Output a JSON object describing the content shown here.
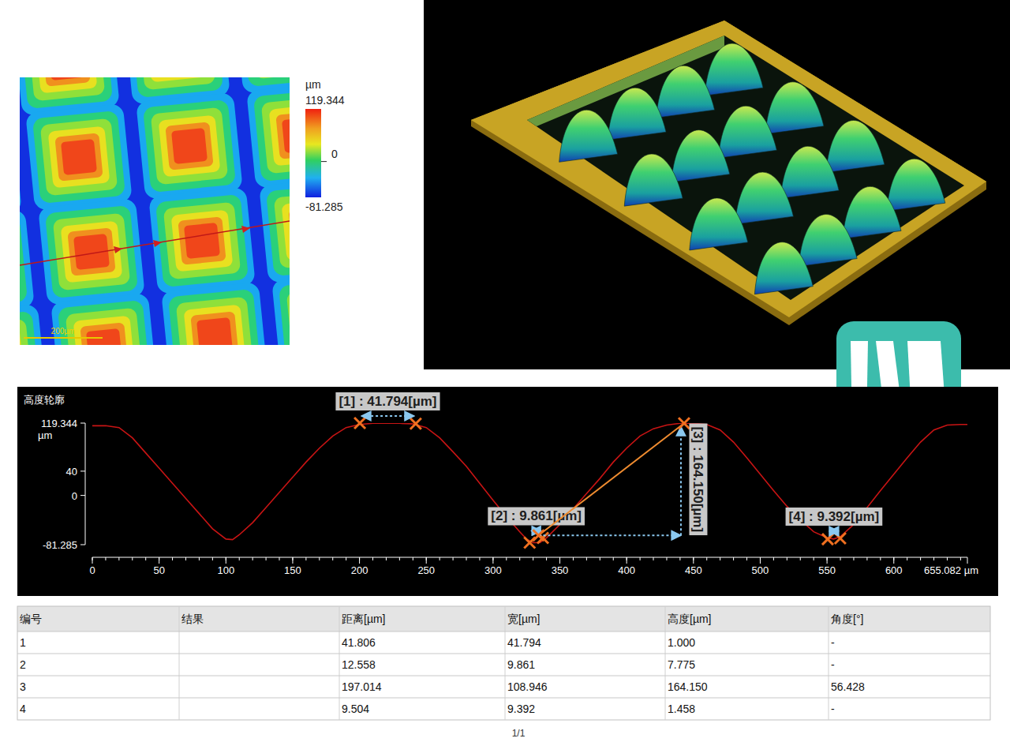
{
  "heatmap": {
    "unit": "µm",
    "colorbar_max": 119.344,
    "colorbar_min": -81.285,
    "colorbar_ticks": [
      0
    ],
    "scale_bar": "200µm"
  },
  "chart_data": {
    "type": "line",
    "title": "高度轮廓",
    "ylabel": "µm",
    "color": "#c81414",
    "grid": false,
    "x": [
      0,
      10,
      20,
      30,
      40,
      50,
      60,
      70,
      80,
      90,
      100,
      105,
      110,
      120,
      130,
      140,
      150,
      160,
      170,
      180,
      190,
      200,
      210,
      220,
      230,
      240,
      250,
      260,
      270,
      280,
      290,
      300,
      310,
      320,
      325,
      330,
      335,
      340,
      350,
      360,
      370,
      380,
      390,
      400,
      410,
      420,
      430,
      440,
      450,
      460,
      470,
      480,
      490,
      500,
      510,
      520,
      530,
      540,
      550,
      555,
      560,
      570,
      580,
      590,
      600,
      610,
      620,
      630,
      640,
      650,
      655.082
    ],
    "values": [
      115,
      115,
      112,
      95,
      70,
      45,
      20,
      -5,
      -30,
      -55,
      -72,
      -73,
      -65,
      -45,
      -20,
      5,
      30,
      55,
      78,
      98,
      112,
      117,
      119,
      119,
      119,
      118,
      112,
      95,
      72,
      48,
      20,
      -8,
      -35,
      -60,
      -72,
      -78,
      -78,
      -70,
      -48,
      -22,
      3,
      28,
      55,
      78,
      98,
      110,
      116,
      119,
      119,
      117,
      108,
      88,
      62,
      35,
      8,
      -18,
      -40,
      -60,
      -70,
      -72,
      -68,
      -48,
      -20,
      8,
      35,
      62,
      88,
      108,
      116,
      117,
      117
    ],
    "xlim": [
      0,
      655.082
    ],
    "ylim": [
      -81.285,
      119.344
    ],
    "xticks": [
      0,
      50,
      100,
      150,
      200,
      250,
      300,
      350,
      400,
      450,
      500,
      550,
      600,
      {
        "value": 655.082,
        "label": "655.082 µm"
      }
    ],
    "yticks": [
      -81.285,
      0,
      40,
      119.344
    ],
    "annotations": [
      {
        "label": "[1] : 41.794[µm]",
        "x": [
          200.3,
          242.1
        ],
        "y": [
          119.344,
          118.344
        ]
      },
      {
        "label": "[2] : 9.861[µm]",
        "x": [
          327.4,
          337.3
        ],
        "y": [
          -78.0,
          -70.2
        ]
      },
      {
        "label": "[3] : 164.150[µm]",
        "x": [
          334.0,
          443.0
        ],
        "y": [
          -66.0,
          119.0
        ]
      },
      {
        "label": "[4] : 9.392[µm]",
        "x": [
          550.5,
          559.9
        ],
        "y": [
          -72.3,
          -70.8
        ]
      }
    ]
  },
  "table": {
    "columns": [
      "编号",
      "结果",
      "距离[µm]",
      "宽[µm]",
      "高度[µm]",
      "角度[°]"
    ],
    "rows": [
      [
        "1",
        null,
        "41.806",
        "41.794",
        "1.000",
        "-"
      ],
      [
        "2",
        null,
        "12.558",
        "9.861",
        "7.775",
        "-"
      ],
      [
        "3",
        null,
        "197.014",
        "108.946",
        "164.150",
        "56.428"
      ],
      [
        "4",
        null,
        "9.504",
        "9.392",
        "1.458",
        "-"
      ]
    ],
    "page": "1/1"
  }
}
